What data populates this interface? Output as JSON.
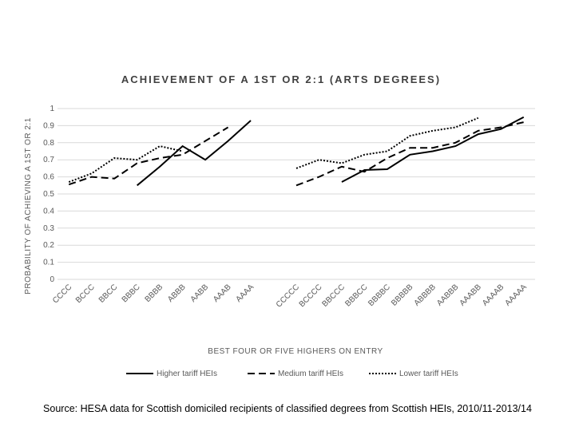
{
  "chart_data": {
    "type": "line",
    "title": "ACHIEVEMENT OF A 1ST OR 2:1 (ARTS DEGREES)",
    "y_label": "PROBABILITY OF ACHIEVING A 1ST OR 2:1",
    "x_label": "BEST FOUR OR FIVE HIGHERS ON ENTRY",
    "source": "Source: HESA data for Scottish domiciled recipients of classified degrees from Scottish HEIs, 2010/11-2013/14",
    "categories": [
      "CCCC",
      "BCCC",
      "BBCC",
      "BBBC",
      "BBBB",
      "ABBB",
      "AABB",
      "AAAB",
      "AAAA",
      null,
      "CCCCC",
      "BCCCC",
      "BBCCC",
      "BBBCC",
      "BBBBC",
      "BBBBB",
      "ABBBB",
      "AABBB",
      "AAABB",
      "AAAAB",
      "AAAAA"
    ],
    "series": [
      {
        "name": "Higher tariff HEIs",
        "color": "#000000",
        "dash": "solid",
        "values": [
          null,
          null,
          null,
          0.55,
          0.66,
          0.78,
          0.7,
          0.81,
          0.93,
          null,
          null,
          null,
          0.57,
          0.64,
          0.645,
          0.73,
          0.75,
          0.78,
          0.85,
          0.88,
          0.95
        ]
      },
      {
        "name": "Medium tariff HEIs",
        "color": "#000000",
        "dash": "dashed",
        "values": [
          0.555,
          0.6,
          0.59,
          0.68,
          0.71,
          0.73,
          0.81,
          0.89,
          null,
          null,
          0.55,
          0.6,
          0.66,
          0.63,
          0.71,
          0.77,
          0.77,
          0.8,
          0.87,
          0.89,
          0.92
        ]
      },
      {
        "name": "Lower tariff HEIs",
        "color": "#000000",
        "dash": "dotted",
        "values": [
          0.57,
          0.62,
          0.71,
          0.7,
          0.78,
          0.75,
          null,
          null,
          null,
          null,
          0.65,
          0.7,
          0.68,
          0.73,
          0.75,
          0.84,
          0.87,
          0.89,
          0.945,
          null,
          null
        ]
      }
    ],
    "ylim": [
      0,
      1
    ],
    "yticks": [
      0,
      0.1,
      0.2,
      0.3,
      0.4,
      0.5,
      0.6,
      0.7,
      0.8,
      0.9,
      1
    ],
    "grid": true,
    "legend": "bottom"
  }
}
